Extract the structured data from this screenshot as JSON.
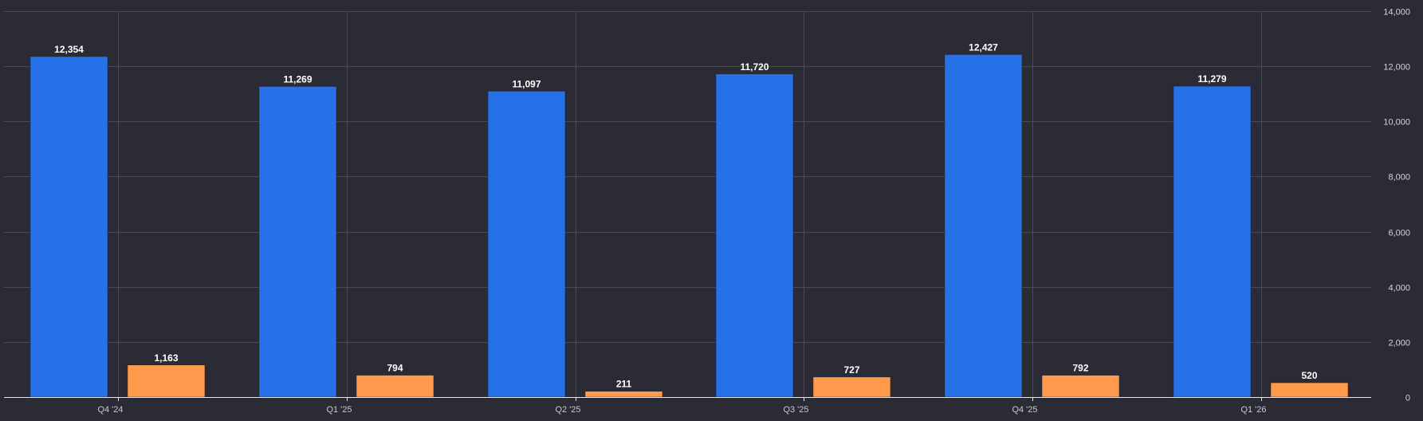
{
  "chart_data": {
    "type": "bar",
    "categories": [
      "Q4 '24",
      "Q1 '25",
      "Q2 '25",
      "Q3 '25",
      "Q4 '25",
      "Q1 '26"
    ],
    "series": [
      {
        "values": [
          12354,
          11269,
          11097,
          11720,
          12427,
          11279
        ],
        "value_labels": [
          "12,354",
          "11,269",
          "11,097",
          "11,720",
          "12,427",
          "11,279"
        ],
        "color": "#2671e8"
      },
      {
        "values": [
          1163,
          794,
          211,
          727,
          792,
          520
        ],
        "value_labels": [
          "1,163",
          "794",
          "211",
          "727",
          "792",
          "520"
        ],
        "color": "#ff9a4d"
      }
    ],
    "ylim": [
      0,
      14000
    ],
    "yticks": [
      0,
      2000,
      4000,
      6000,
      8000,
      10000,
      12000,
      14000
    ],
    "ytick_labels": [
      "0",
      "2,000",
      "4,000",
      "6,000",
      "8,000",
      "10,000",
      "12,000",
      "14,000"
    ],
    "y_axis_position": "right",
    "grid": true,
    "title": "",
    "xlabel": "",
    "ylabel": "",
    "background_color": "#2b2b35",
    "grid_color": "#4a4a55"
  }
}
